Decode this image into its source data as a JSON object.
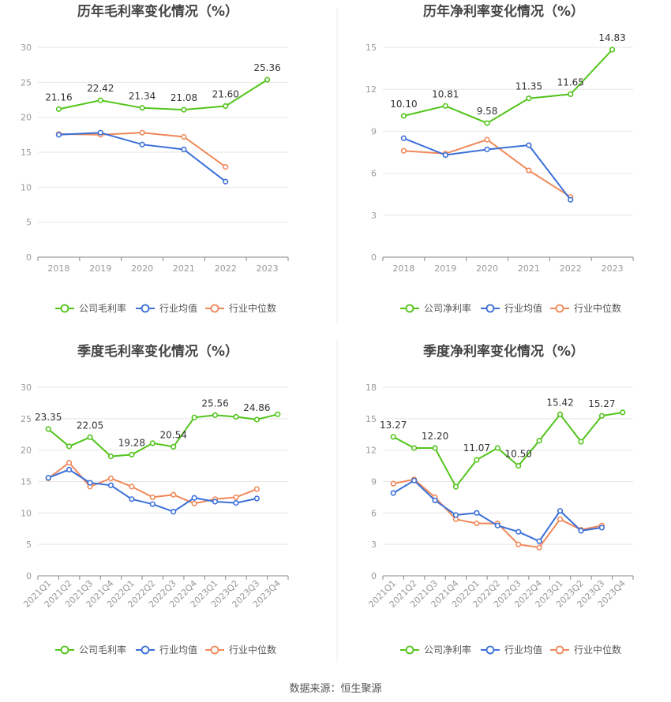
{
  "source_label": "数据来源：恒生聚源",
  "legend_colors": [
    "#52c41a",
    "#3a6fd8",
    "#f0885a"
  ],
  "chart_data": [
    {
      "type": "line",
      "title": "历年毛利率变化情况（%）",
      "categories": [
        "2018",
        "2019",
        "2020",
        "2021",
        "2022",
        "2023"
      ],
      "ylim": [
        0,
        30
      ],
      "yticks": [
        0,
        5,
        10,
        15,
        20,
        25,
        30
      ],
      "grid": true,
      "legend_position": "bottom",
      "series": [
        {
          "name": "公司毛利率",
          "values": [
            21.16,
            22.42,
            21.34,
            21.08,
            21.6,
            25.36
          ],
          "labels": [
            "21.16",
            "22.42",
            "21.34",
            "21.08",
            "21.60",
            "25.36"
          ]
        },
        {
          "name": "行业均值",
          "values": [
            17.5,
            17.8,
            16.1,
            15.4,
            10.8,
            null
          ]
        },
        {
          "name": "行业中位数",
          "values": [
            17.6,
            17.5,
            17.8,
            17.2,
            12.9,
            null
          ]
        }
      ]
    },
    {
      "type": "line",
      "title": "历年净利率变化情况（%）",
      "categories": [
        "2018",
        "2019",
        "2020",
        "2021",
        "2022",
        "2023"
      ],
      "ylim": [
        0,
        15
      ],
      "yticks": [
        0,
        3,
        6,
        9,
        12,
        15
      ],
      "grid": true,
      "legend_position": "bottom",
      "series": [
        {
          "name": "公司净利率",
          "values": [
            10.1,
            10.81,
            9.58,
            11.35,
            11.65,
            14.83
          ],
          "labels": [
            "10.10",
            "10.81",
            "9.58",
            "11.35",
            "11.65",
            "14.83"
          ]
        },
        {
          "name": "行业均值",
          "values": [
            8.5,
            7.3,
            7.7,
            8.0,
            4.1,
            null
          ]
        },
        {
          "name": "行业中位数",
          "values": [
            7.6,
            7.4,
            8.4,
            6.2,
            4.3,
            null
          ]
        }
      ]
    },
    {
      "type": "line",
      "title": "季度毛利率变化情况（%）",
      "categories": [
        "2021Q1",
        "2021Q2",
        "2021Q3",
        "2021Q4",
        "2022Q1",
        "2022Q2",
        "2022Q3",
        "2022Q4",
        "2023Q1",
        "2023Q2",
        "2023Q3",
        "2023Q4"
      ],
      "ylim": [
        0,
        30
      ],
      "yticks": [
        0,
        5,
        10,
        15,
        20,
        25,
        30
      ],
      "grid": true,
      "legend_position": "bottom",
      "series": [
        {
          "name": "公司毛利率",
          "values": [
            23.35,
            20.6,
            22.05,
            19.0,
            19.28,
            21.1,
            20.54,
            25.2,
            25.56,
            25.3,
            24.86,
            25.7
          ],
          "labels": [
            "23.35",
            "",
            "22.05",
            "",
            "19.28",
            "",
            "20.54",
            "",
            "25.56",
            "",
            "24.86",
            ""
          ]
        },
        {
          "name": "行业均值",
          "values": [
            15.6,
            16.9,
            14.8,
            14.4,
            12.2,
            11.4,
            10.2,
            12.4,
            11.8,
            11.6,
            12.3,
            null
          ]
        },
        {
          "name": "行业中位数",
          "values": [
            15.5,
            18.0,
            14.2,
            15.5,
            14.2,
            12.5,
            12.9,
            11.5,
            12.2,
            12.5,
            13.8,
            null
          ]
        }
      ]
    },
    {
      "type": "line",
      "title": "季度净利率变化情况（%）",
      "categories": [
        "2021Q1",
        "2021Q2",
        "2021Q3",
        "2021Q4",
        "2022Q1",
        "2022Q2",
        "2022Q3",
        "2022Q4",
        "2023Q1",
        "2023Q2",
        "2023Q3",
        "2023Q4"
      ],
      "ylim": [
        0,
        18
      ],
      "yticks": [
        0,
        3,
        6,
        9,
        12,
        15,
        18
      ],
      "grid": true,
      "legend_position": "bottom",
      "series": [
        {
          "name": "公司净利率",
          "values": [
            13.27,
            12.2,
            12.2,
            8.5,
            11.07,
            12.2,
            10.5,
            12.9,
            15.42,
            12.8,
            15.27,
            15.6
          ],
          "labels": [
            "13.27",
            "",
            "12.20",
            "",
            "11.07",
            "",
            "10.50",
            "",
            "15.42",
            "",
            "15.27",
            ""
          ]
        },
        {
          "name": "行业均值",
          "values": [
            7.9,
            9.1,
            7.2,
            5.8,
            6.0,
            4.8,
            4.2,
            3.3,
            6.2,
            4.3,
            4.6,
            null
          ]
        },
        {
          "name": "行业中位数",
          "values": [
            8.8,
            9.2,
            7.5,
            5.4,
            5.0,
            5.0,
            3.0,
            2.7,
            5.4,
            4.4,
            4.8,
            null
          ]
        }
      ]
    }
  ]
}
